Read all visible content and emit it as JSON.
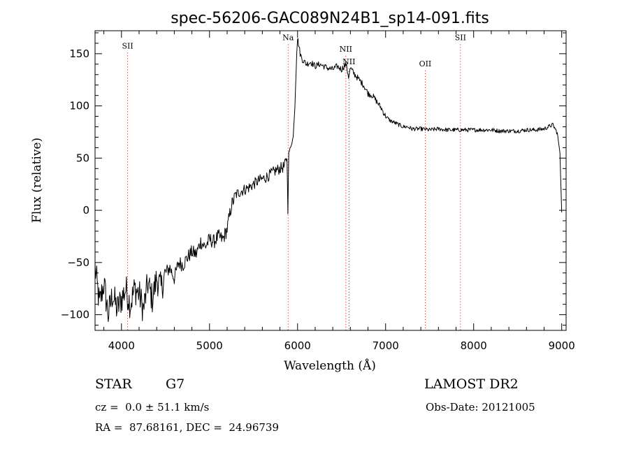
{
  "chart_data": {
    "type": "line",
    "title": "spec-56206-GAC089N24B1_sp14-091.fits",
    "xlabel": "Wavelength (Å)",
    "ylabel": "Flux (relative)",
    "xlim": [
      3700,
      9050
    ],
    "ylim": [
      -115,
      172
    ],
    "xticks": [
      4000,
      5000,
      6000,
      7000,
      8000,
      9000
    ],
    "yticks": [
      -100,
      -50,
      0,
      50,
      100,
      150
    ],
    "tick_color": "#000000",
    "series_color": "#000000",
    "marker_color": "#cc0000",
    "line_markers": [
      {
        "label": "SII",
        "x": 4070,
        "label_y": 155
      },
      {
        "label": "Na",
        "x": 5893,
        "label_y": 163
      },
      {
        "label": "NII",
        "x": 6548,
        "label_y": 152
      },
      {
        "label": "NII",
        "x": 6584,
        "label_y": 140
      },
      {
        "label": "OII",
        "x": 7450,
        "label_y": 138
      },
      {
        "label": "SII",
        "x": 7850,
        "label_y": 163
      }
    ],
    "series": [
      {
        "x": [
          3700,
          3750,
          3800,
          3850,
          3900,
          3950,
          4000,
          4050,
          4100,
          4150,
          4200,
          4250,
          4300,
          4350,
          4400,
          4450,
          4500,
          4550,
          4600,
          4650,
          4700,
          4750,
          4800,
          4850,
          4900,
          4950,
          5000,
          5050,
          5100,
          5150,
          5200,
          5250,
          5300,
          5350,
          5400,
          5450,
          5500,
          5550,
          5600,
          5650,
          5700,
          5750,
          5800,
          5850,
          5880,
          5890,
          5900,
          5920,
          5950,
          5970,
          5990,
          6000,
          6010,
          6030,
          6050,
          6100,
          6150,
          6200,
          6250,
          6300,
          6350,
          6400,
          6450,
          6500,
          6550,
          6580,
          6600,
          6650,
          6700,
          6750,
          6800,
          6850,
          6900,
          6950,
          7000,
          7050,
          7100,
          7150,
          7200,
          7250,
          7300,
          7400,
          7500,
          7600,
          7700,
          7800,
          7900,
          8000,
          8100,
          8200,
          8300,
          8400,
          8500,
          8600,
          8700,
          8800,
          8850,
          8900,
          8950,
          8980,
          9000
        ],
        "y": [
          -55,
          -90,
          -70,
          -100,
          -80,
          -95,
          -85,
          -75,
          -90,
          -75,
          -80,
          -95,
          -70,
          -85,
          -65,
          -75,
          -60,
          -55,
          -65,
          -50,
          -52,
          -45,
          -40,
          -42,
          -30,
          -35,
          -28,
          -30,
          -25,
          -28,
          -18,
          5,
          15,
          18,
          20,
          22,
          25,
          28,
          30,
          32,
          35,
          38,
          40,
          42,
          50,
          -2,
          55,
          60,
          70,
          100,
          150,
          165,
          160,
          150,
          145,
          140,
          142,
          138,
          140,
          138,
          136,
          135,
          138,
          135,
          140,
          128,
          136,
          130,
          125,
          120,
          112,
          110,
          104,
          98,
          90,
          86,
          84,
          82,
          80,
          80,
          78,
          78,
          77,
          78,
          77,
          77,
          77,
          77,
          77,
          77,
          76,
          76,
          76,
          77,
          77,
          78,
          80,
          82,
          74,
          55,
          -2
        ]
      }
    ]
  },
  "info": {
    "object_class": "STAR",
    "subclass": "G7",
    "survey": "LAMOST DR2",
    "redshift": "cz =  0.0 ± 51.1 km/s",
    "obs_date": "Obs-Date: 20121005",
    "coords": "RA =  87.68161, DEC =  24.96739"
  }
}
